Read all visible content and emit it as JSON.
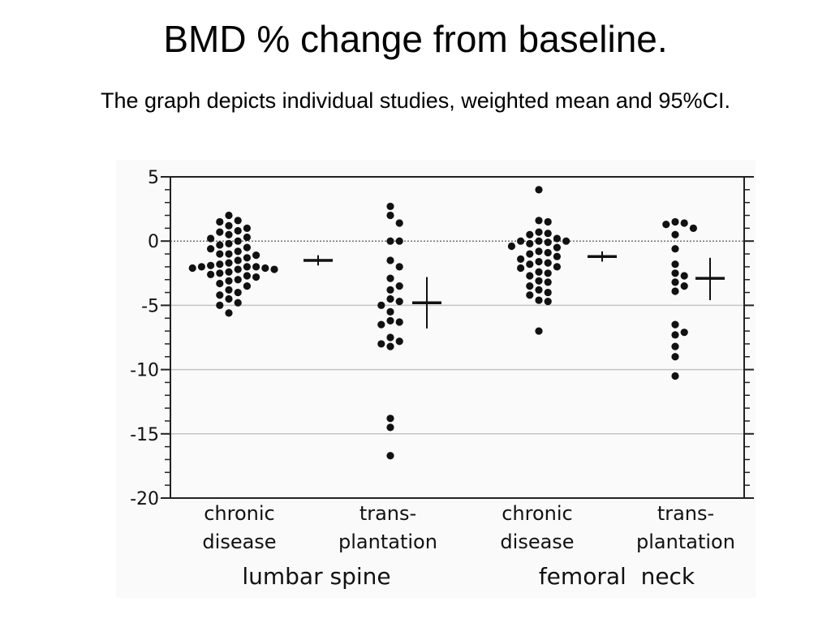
{
  "slide": {
    "title": "BMD % change from baseline.",
    "subtitle": "The graph depicts individual studies, weighted mean and 95%CI."
  },
  "chart_data": {
    "type": "scatter",
    "title": "",
    "ylabel": "",
    "ylim": [
      -20,
      5
    ],
    "yticks": [
      5,
      0,
      -5,
      -10,
      -15,
      -20
    ],
    "ytick_labels": [
      "5",
      "0",
      "-5",
      "-10",
      "-15",
      "-20"
    ],
    "grid": true,
    "reference_line": 0,
    "categories": [
      {
        "line1": "chronic",
        "line2": "disease"
      },
      {
        "line1": "trans-",
        "line2": "plantation"
      },
      {
        "line1": "chronic",
        "line2": "disease"
      },
      {
        "line1": "trans-",
        "line2": "plantation"
      }
    ],
    "groups": [
      "lumbar spine",
      "femoral  neck"
    ],
    "series": [
      {
        "values": [
          2.0,
          1.6,
          1.5,
          1.2,
          1.0,
          0.8,
          0.7,
          0.5,
          0.3,
          0.2,
          0.0,
          -0.2,
          -0.3,
          -0.5,
          -0.6,
          -0.8,
          -1.0,
          -1.0,
          -1.1,
          -1.3,
          -1.5,
          -1.7,
          -1.8,
          -1.9,
          -2.0,
          -2.0,
          -2.0,
          -2.1,
          -2.1,
          -2.2,
          -2.2,
          -2.4,
          -2.5,
          -2.6,
          -2.7,
          -2.8,
          -3.0,
          -3.1,
          -3.3,
          -3.5,
          -3.8,
          -4.0,
          -4.2,
          -4.5,
          -4.8,
          -5.0,
          -5.6
        ]
      },
      {
        "values": [
          2.7,
          2.0,
          1.4,
          0.0,
          0.0,
          -1.5,
          -2.0,
          -2.9,
          -3.5,
          -3.8,
          -4.5,
          -4.7,
          -5.0,
          -5.5,
          -6.2,
          -6.3,
          -6.5,
          -7.5,
          -7.8,
          -8.0,
          -8.2,
          -13.8,
          -14.5,
          -16.7
        ]
      },
      {
        "values": [
          4.0,
          1.6,
          1.5,
          0.7,
          0.6,
          0.5,
          0.2,
          0.0,
          0.0,
          0.0,
          -0.1,
          -0.2,
          -0.4,
          -0.5,
          -0.8,
          -0.9,
          -1.0,
          -1.2,
          -1.4,
          -1.6,
          -1.7,
          -1.8,
          -2.0,
          -2.1,
          -2.4,
          -2.5,
          -2.7,
          -3.1,
          -3.2,
          -3.5,
          -3.8,
          -4.0,
          -4.2,
          -4.6,
          -4.7,
          -7.0
        ]
      },
      {
        "values": [
          1.5,
          1.4,
          1.3,
          1.0,
          0.5,
          -0.6,
          -1.8,
          -2.5,
          -2.7,
          -3.2,
          -3.5,
          -3.9,
          -6.5,
          -7.1,
          -7.3,
          -8.2,
          -9.0,
          -10.5
        ]
      }
    ],
    "summary": [
      {
        "mean": -1.5,
        "ci_low": -1.9,
        "ci_high": -1.1
      },
      {
        "mean": -4.8,
        "ci_low": -6.8,
        "ci_high": -2.8
      },
      {
        "mean": -1.2,
        "ci_low": -1.6,
        "ci_high": -0.8
      },
      {
        "mean": -2.9,
        "ci_low": -4.6,
        "ci_high": -1.3
      }
    ]
  }
}
